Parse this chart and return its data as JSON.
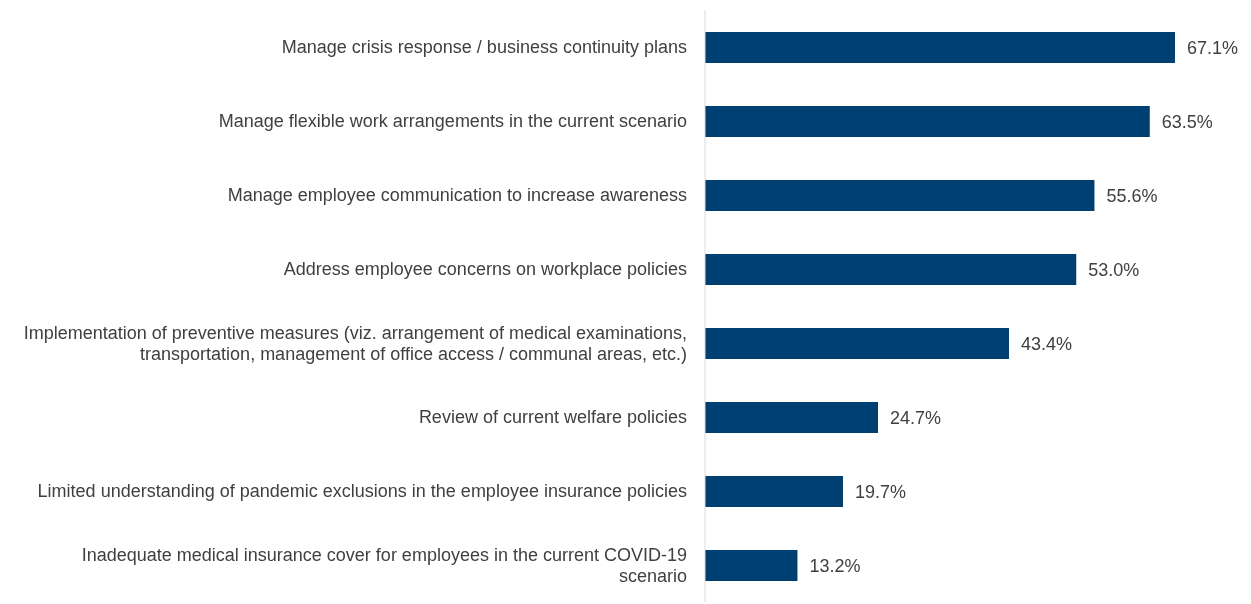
{
  "chart_data": {
    "type": "bar",
    "orientation": "horizontal",
    "categories": [
      "Manage crisis response / business continuity plans",
      "Manage flexible work arrangements in the current scenario",
      "Manage employee communication to increase awareness",
      "Address employee concerns on workplace policies",
      "Implementation of preventive measures (viz. arrangement of medical examinations, transportation, management of office access / communal areas, etc.)",
      "Review of current welfare policies",
      "Limited understanding of pandemic exclusions in the employee insurance policies",
      "Inadequate medical insurance cover for employees in the current COVID-19 scenario"
    ],
    "values": [
      67.1,
      63.5,
      55.6,
      53.0,
      43.4,
      24.7,
      19.7,
      13.2
    ],
    "value_labels": [
      "67.1%",
      "63.5%",
      "55.6%",
      "53.0%",
      "43.4%",
      "24.7%",
      "19.7%",
      "13.2%"
    ],
    "color": "#003f72"
  }
}
